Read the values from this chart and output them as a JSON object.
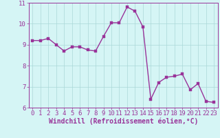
{
  "x": [
    0,
    1,
    2,
    3,
    4,
    5,
    6,
    7,
    8,
    9,
    10,
    11,
    12,
    13,
    14,
    15,
    16,
    17,
    18,
    19,
    20,
    21,
    22,
    23
  ],
  "y": [
    9.2,
    9.2,
    9.3,
    9.0,
    8.7,
    8.9,
    8.9,
    8.75,
    8.7,
    9.4,
    10.05,
    10.05,
    10.8,
    10.6,
    9.85,
    6.4,
    7.2,
    7.45,
    7.5,
    7.6,
    6.85,
    7.15,
    6.3,
    6.25
  ],
  "line_color": "#993399",
  "marker_color": "#993399",
  "bg_color": "#d5f5f5",
  "grid_color": "#aad8d8",
  "xlabel": "Windchill (Refroidissement éolien,°C)",
  "xlabel_color": "#993399",
  "tick_color": "#993399",
  "ylim": [
    6,
    11
  ],
  "xlim": [
    -0.5,
    23.5
  ],
  "yticks": [
    6,
    7,
    8,
    9,
    10,
    11
  ],
  "xticks": [
    0,
    1,
    2,
    3,
    4,
    5,
    6,
    7,
    8,
    9,
    10,
    11,
    12,
    13,
    14,
    15,
    16,
    17,
    18,
    19,
    20,
    21,
    22,
    23
  ],
  "marker_size": 2.5,
  "line_width": 1.0,
  "font_size": 6.5,
  "xlabel_fontsize": 7.0
}
